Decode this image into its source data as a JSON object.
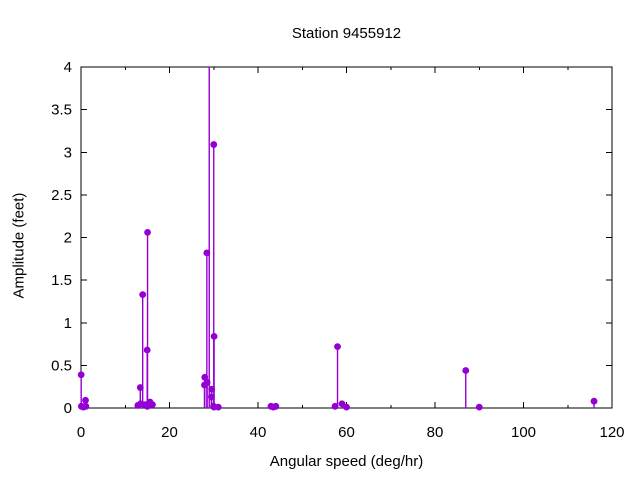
{
  "chart_data": {
    "type": "stem",
    "title": "Station 9455912",
    "xlabel": "Angular speed (deg/hr)",
    "ylabel": "Amplitude (feet)",
    "xlim": [
      0,
      120
    ],
    "ylim": [
      0,
      4
    ],
    "xticks": [
      0,
      20,
      40,
      60,
      80,
      100,
      120
    ],
    "minor_xtick_step": 10,
    "yticks": [
      0,
      0.5,
      1,
      1.5,
      2,
      2.5,
      3,
      3.5,
      4
    ],
    "grid": false,
    "legend_shown": false,
    "marker": "filled-circle",
    "stem_color": "#9400d3",
    "axis_color": "#000000",
    "background_color": "#ffffff",
    "points": [
      [
        0.04,
        0.39
      ],
      [
        0.08,
        0.02
      ],
      [
        0.54,
        0.01
      ],
      [
        1.02,
        0.09
      ],
      [
        1.1,
        0.02
      ],
      [
        12.85,
        0.03
      ],
      [
        13.4,
        0.24
      ],
      [
        13.47,
        0.05
      ],
      [
        13.94,
        1.33
      ],
      [
        14.5,
        0.04
      ],
      [
        14.96,
        0.68
      ],
      [
        15.0,
        0.02
      ],
      [
        15.04,
        2.06
      ],
      [
        15.59,
        0.07
      ],
      [
        16.14,
        0.04
      ],
      [
        27.9,
        0.27
      ],
      [
        27.97,
        0.36
      ],
      [
        28.44,
        1.82
      ],
      [
        28.51,
        0.3
      ],
      [
        28.98,
        4.2
      ],
      [
        29.46,
        0.13
      ],
      [
        29.53,
        0.22
      ],
      [
        29.96,
        0.02
      ],
      [
        30.0,
        3.09
      ],
      [
        30.04,
        0.01
      ],
      [
        30.08,
        0.84
      ],
      [
        31.02,
        0.01
      ],
      [
        42.93,
        0.02
      ],
      [
        43.48,
        0.01
      ],
      [
        44.03,
        0.02
      ],
      [
        57.42,
        0.02
      ],
      [
        57.97,
        0.72
      ],
      [
        58.98,
        0.05
      ],
      [
        60.0,
        0.01
      ],
      [
        86.95,
        0.44
      ],
      [
        90.0,
        0.01
      ],
      [
        115.94,
        0.08
      ]
    ],
    "note": "Stem near x=28.98 exceeds the y-axis maximum and is clipped at the top border (amplitude > 4); its marker is not visible."
  }
}
